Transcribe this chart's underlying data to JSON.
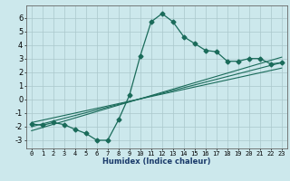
{
  "title": "",
  "xlabel": "Humidex (Indice chaleur)",
  "bg_color": "#cce8ec",
  "grid_color": "#aac8cc",
  "line_color": "#1a6b5a",
  "xlim": [
    -0.5,
    23.5
  ],
  "ylim": [
    -3.6,
    6.9
  ],
  "xticks": [
    0,
    1,
    2,
    3,
    4,
    5,
    6,
    7,
    8,
    9,
    10,
    11,
    12,
    13,
    14,
    15,
    16,
    17,
    18,
    19,
    20,
    21,
    22,
    23
  ],
  "yticks": [
    -3,
    -2,
    -1,
    0,
    1,
    2,
    3,
    4,
    5,
    6
  ],
  "curve_x": [
    0,
    1,
    2,
    3,
    4,
    5,
    6,
    7,
    8,
    9,
    10,
    11,
    12,
    13,
    14,
    15,
    16,
    17,
    18,
    19,
    20,
    21,
    22,
    23
  ],
  "curve_y": [
    -1.8,
    -1.9,
    -1.7,
    -1.85,
    -2.2,
    -2.5,
    -3.0,
    -3.0,
    -1.5,
    0.3,
    3.2,
    5.7,
    6.3,
    5.7,
    4.6,
    4.1,
    3.6,
    3.5,
    2.8,
    2.8,
    3.0,
    3.0,
    2.6,
    2.7
  ],
  "line1_x": [
    0,
    23
  ],
  "line1_y": [
    -2.3,
    3.1
  ],
  "line2_x": [
    0,
    23
  ],
  "line2_y": [
    -2.0,
    2.7
  ],
  "line3_x": [
    0,
    23
  ],
  "line3_y": [
    -1.7,
    2.3
  ],
  "xlabel_fontsize": 6.0,
  "tick_fontsize_x": 5.0,
  "tick_fontsize_y": 6.0
}
